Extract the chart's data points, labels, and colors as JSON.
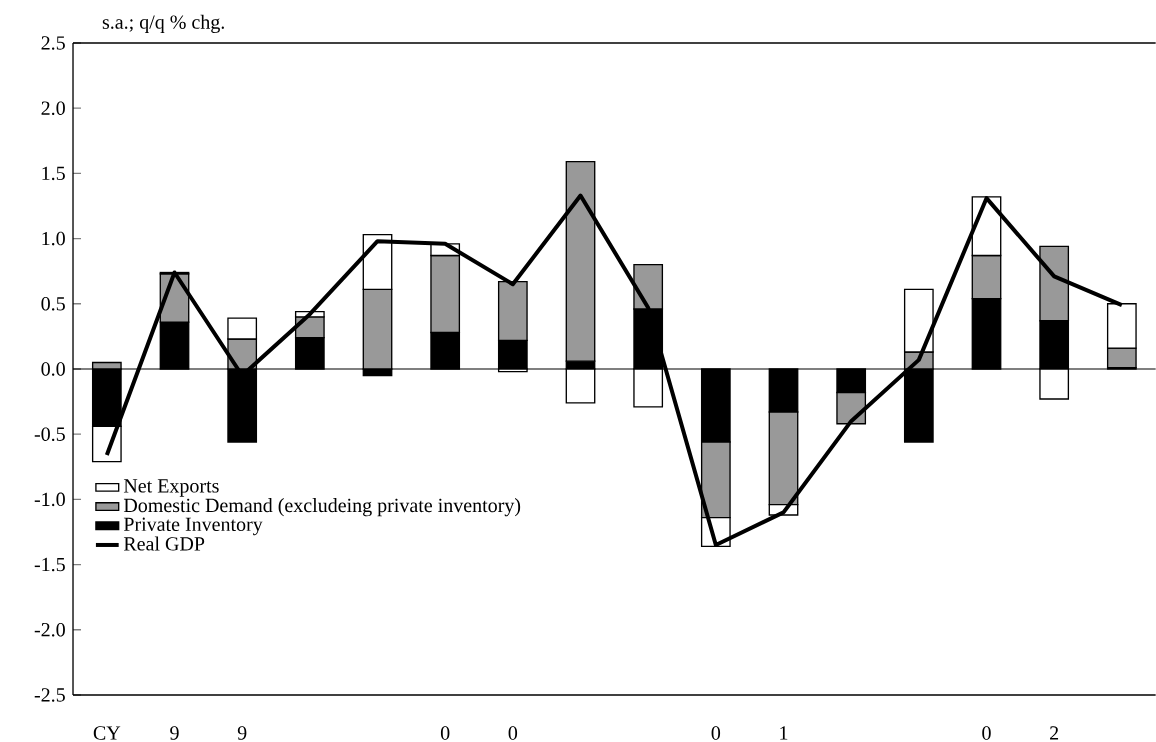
{
  "chart_data": {
    "type": "bar",
    "stacked": true,
    "ylabel": "s.a.; q/q % chg.",
    "categories": [
      "CY",
      "9",
      "9",
      null,
      null,
      "0",
      "0",
      null,
      null,
      "0",
      "1",
      null,
      null,
      "0",
      "2",
      null
    ],
    "ylim": [
      -2.5,
      2.5
    ],
    "yticks": [
      {
        "value": -2.5,
        "label": "-2.5"
      },
      {
        "value": -2,
        "label": "-2.0"
      },
      {
        "value": -1.5,
        "label": "-1.5"
      },
      {
        "value": -1,
        "label": "-1.0"
      },
      {
        "value": -0.5,
        "label": "-0.5"
      },
      {
        "value": 0,
        "label": "0.0"
      },
      {
        "value": 0.5,
        "label": "0.5"
      },
      {
        "value": 1,
        "label": "1.0"
      },
      {
        "value": 1.5,
        "label": "1.5"
      },
      {
        "value": 2,
        "label": "2.0"
      },
      {
        "value": 2.5,
        "label": "2.5"
      }
    ],
    "legend": "bottom left",
    "series": [
      {
        "name": "Private Inventory",
        "color": "#000000",
        "values": [
          -0.44,
          0.36,
          -0.56,
          0.24,
          -0.05,
          0.28,
          0.22,
          0.06,
          0.46,
          -0.56,
          -0.33,
          -0.18,
          -0.56,
          0.54,
          0.37,
          0.01
        ]
      },
      {
        "name": "Domestic Demand (excludeing private inventory)",
        "color": "#999999",
        "values": [
          0.05,
          0.37,
          0.23,
          0.16,
          0.61,
          0.59,
          0.45,
          1.53,
          0.34,
          -0.58,
          -0.71,
          -0.24,
          0.13,
          0.33,
          0.57,
          0.15
        ]
      },
      {
        "name": "Net Exports",
        "color": "#ffffff",
        "values": [
          -0.27,
          0.01,
          0.16,
          0.04,
          0.42,
          0.09,
          -0.02,
          -0.26,
          -0.29,
          -0.22,
          -0.08,
          null,
          0.48,
          0.45,
          -0.23,
          0.34
        ]
      },
      {
        "name": "Real GDP",
        "type": "line",
        "color": "#000000",
        "values": [
          -0.66,
          0.74,
          -0.05,
          0.42,
          0.98,
          0.96,
          0.65,
          1.33,
          0.47,
          -1.35,
          -1.1,
          -0.4,
          0.07,
          1.31,
          0.71,
          0.49
        ]
      }
    ]
  }
}
